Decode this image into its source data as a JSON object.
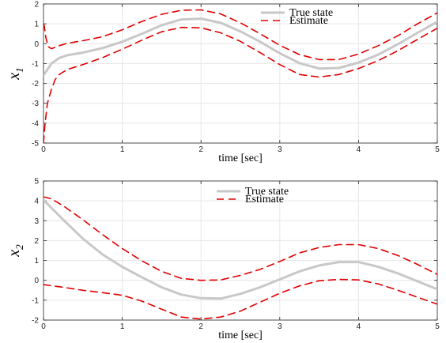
{
  "chart_data": [
    {
      "type": "line",
      "xlabel": "time [sec]",
      "ylabel": "x",
      "ylabel_subscript": "1",
      "xlim": [
        0,
        5
      ],
      "ylim": [
        -5,
        2
      ],
      "xticks": [
        "0",
        "1",
        "2",
        "3",
        "4",
        "5"
      ],
      "yticks": [
        "-5",
        "-4",
        "-3",
        "-2",
        "-1",
        "0",
        "1",
        "2"
      ],
      "grid": true,
      "legend_position": "top-right",
      "legend": [
        "True state",
        "Estimate"
      ],
      "colors": {
        "true_state": "#c8c8c8",
        "estimate": "#e00000"
      },
      "series": [
        {
          "name": "True state",
          "style": "solid",
          "x": [
            0,
            0.1,
            0.2,
            0.3,
            0.5,
            0.75,
            1.0,
            1.25,
            1.5,
            1.75,
            2.0,
            2.25,
            2.5,
            2.75,
            3.0,
            3.25,
            3.5,
            3.75,
            4.0,
            4.25,
            4.5,
            4.75,
            5.0
          ],
          "y": [
            -1.6,
            -1.0,
            -0.72,
            -0.58,
            -0.45,
            -0.22,
            0.1,
            0.5,
            0.93,
            1.22,
            1.26,
            1.05,
            0.62,
            0.1,
            -0.48,
            -0.98,
            -1.25,
            -1.22,
            -0.95,
            -0.55,
            -0.02,
            0.55,
            1.1
          ]
        },
        {
          "name": "Estimate",
          "style": "dashed",
          "x": [
            0,
            0.01,
            0.03,
            0.06,
            0.1,
            0.15,
            0.2,
            0.3,
            0.5,
            0.75,
            1.0,
            1.25,
            1.5,
            1.75,
            2.0,
            2.25,
            2.5,
            2.75,
            3.0,
            3.25,
            3.5,
            3.75,
            4.0,
            4.25,
            4.5,
            4.75,
            5.0
          ],
          "y": [
            1.0,
            0.9,
            0.3,
            -0.15,
            -0.25,
            -0.18,
            -0.1,
            0.02,
            0.15,
            0.35,
            0.7,
            1.12,
            1.48,
            1.68,
            1.7,
            1.5,
            1.05,
            0.5,
            -0.08,
            -0.55,
            -0.8,
            -0.8,
            -0.52,
            -0.1,
            0.4,
            1.0,
            1.55
          ]
        },
        {
          "name": "",
          "style": "dashed",
          "x": [
            0,
            0.02,
            0.05,
            0.1,
            0.15,
            0.2,
            0.3,
            0.5,
            0.75,
            1.0,
            1.25,
            1.5,
            1.75,
            2.0,
            2.25,
            2.5,
            2.75,
            3.0,
            3.25,
            3.5,
            3.75,
            4.0,
            4.25,
            4.5,
            4.75,
            5.0
          ],
          "y": [
            -5.0,
            -4.0,
            -3.0,
            -2.3,
            -1.8,
            -1.55,
            -1.3,
            -1.05,
            -0.7,
            -0.28,
            0.18,
            0.6,
            0.82,
            0.8,
            0.55,
            0.12,
            -0.45,
            -1.05,
            -1.55,
            -1.68,
            -1.55,
            -1.25,
            -0.85,
            -0.35,
            0.22,
            0.78
          ]
        }
      ]
    },
    {
      "type": "line",
      "xlabel": "time [sec]",
      "ylabel": "x",
      "ylabel_subscript": "2",
      "xlim": [
        0,
        5
      ],
      "ylim": [
        -2,
        5
      ],
      "xticks": [
        "0",
        "1",
        "2",
        "3",
        "4",
        "5"
      ],
      "yticks": [
        "-2",
        "-1",
        "0",
        "1",
        "2",
        "3",
        "4",
        "5"
      ],
      "grid": true,
      "legend_position": "top-center",
      "legend": [
        "True state",
        "Estimate"
      ],
      "colors": {
        "true_state": "#c8c8c8",
        "estimate": "#e00000"
      },
      "series": [
        {
          "name": "True state",
          "style": "solid",
          "x": [
            0,
            0.25,
            0.5,
            0.75,
            1.0,
            1.25,
            1.5,
            1.75,
            2.0,
            2.25,
            2.5,
            2.75,
            3.0,
            3.25,
            3.5,
            3.75,
            4.0,
            4.25,
            4.5,
            4.75,
            5.0
          ],
          "y": [
            4.05,
            3.05,
            2.1,
            1.3,
            0.68,
            0.15,
            -0.35,
            -0.72,
            -0.9,
            -0.92,
            -0.68,
            -0.35,
            0.05,
            0.45,
            0.75,
            0.92,
            0.92,
            0.68,
            0.35,
            -0.05,
            -0.45
          ]
        },
        {
          "name": "Estimate",
          "style": "dashed",
          "x": [
            0,
            0.1,
            0.25,
            0.5,
            0.75,
            1.0,
            1.25,
            1.5,
            1.75,
            2.0,
            2.25,
            2.5,
            2.75,
            3.0,
            3.25,
            3.5,
            3.75,
            4.0,
            4.25,
            4.5,
            4.75,
            5.0
          ],
          "y": [
            4.2,
            4.1,
            3.75,
            3.05,
            2.3,
            1.6,
            0.98,
            0.45,
            0.1,
            0.0,
            0.02,
            0.25,
            0.55,
            0.95,
            1.38,
            1.65,
            1.8,
            1.8,
            1.6,
            1.25,
            0.8,
            0.3
          ]
        },
        {
          "name": "",
          "style": "dashed",
          "x": [
            0,
            0.25,
            0.5,
            0.75,
            1.0,
            1.25,
            1.5,
            1.75,
            2.0,
            2.25,
            2.5,
            2.75,
            3.0,
            3.25,
            3.5,
            3.75,
            4.0,
            4.25,
            4.5,
            4.75,
            5.0
          ],
          "y": [
            -0.22,
            -0.35,
            -0.5,
            -0.62,
            -0.75,
            -1.05,
            -1.45,
            -1.85,
            -1.95,
            -1.85,
            -1.55,
            -1.1,
            -0.65,
            -0.28,
            -0.02,
            0.05,
            0.02,
            -0.18,
            -0.5,
            -0.85,
            -1.2
          ]
        }
      ]
    }
  ]
}
